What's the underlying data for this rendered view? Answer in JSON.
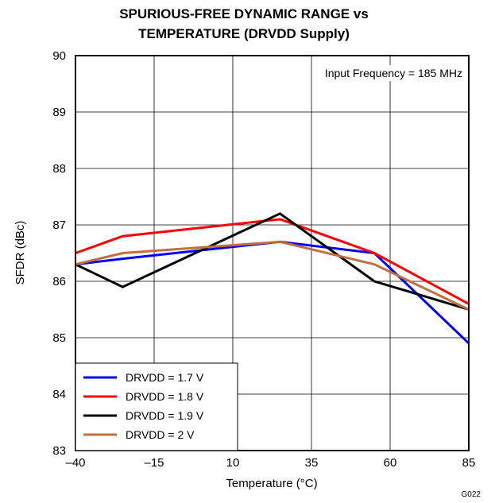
{
  "chart_data": {
    "type": "line",
    "title_line1": "SPURIOUS-FREE DYNAMIC RANGE vs",
    "title_line2": "TEMPERATURE (DRVDD Supply)",
    "xlabel": "Temperature (°C)",
    "ylabel": "SFDR (dBc)",
    "xlim": [
      -40,
      85
    ],
    "ylim": [
      83,
      90
    ],
    "x_ticks": [
      -40,
      -15,
      10,
      35,
      60,
      85
    ],
    "x_tick_labels": [
      "–40",
      "–15",
      "10",
      "35",
      "60",
      "85"
    ],
    "y_ticks": [
      83,
      84,
      85,
      86,
      87,
      88,
      89,
      90
    ],
    "y_tick_labels": [
      "83",
      "84",
      "85",
      "86",
      "87",
      "88",
      "89",
      "90"
    ],
    "grid": true,
    "annotation": "Input Frequency = 185 MHz",
    "figure_code": "G022",
    "legend_position": "bottom-left",
    "series": [
      {
        "name": "DRVDD = 1.7 V",
        "color": "#0000ff",
        "x": [
          -40,
          -25,
          25,
          55,
          85
        ],
        "y": [
          86.3,
          86.4,
          86.7,
          86.5,
          84.9
        ]
      },
      {
        "name": "DRVDD = 1.8 V",
        "color": "#ff0000",
        "x": [
          -40,
          -25,
          25,
          55,
          85
        ],
        "y": [
          86.5,
          86.8,
          87.1,
          86.5,
          85.6
        ]
      },
      {
        "name": "DRVDD = 1.9 V",
        "color": "#000000",
        "x": [
          -40,
          -25,
          25,
          55,
          85
        ],
        "y": [
          86.3,
          85.9,
          87.2,
          86.0,
          85.5
        ]
      },
      {
        "name": "DRVDD = 2 V",
        "color": "#c07040",
        "x": [
          -40,
          -25,
          25,
          55,
          85
        ],
        "y": [
          86.3,
          86.5,
          86.7,
          86.3,
          85.5
        ]
      }
    ]
  }
}
